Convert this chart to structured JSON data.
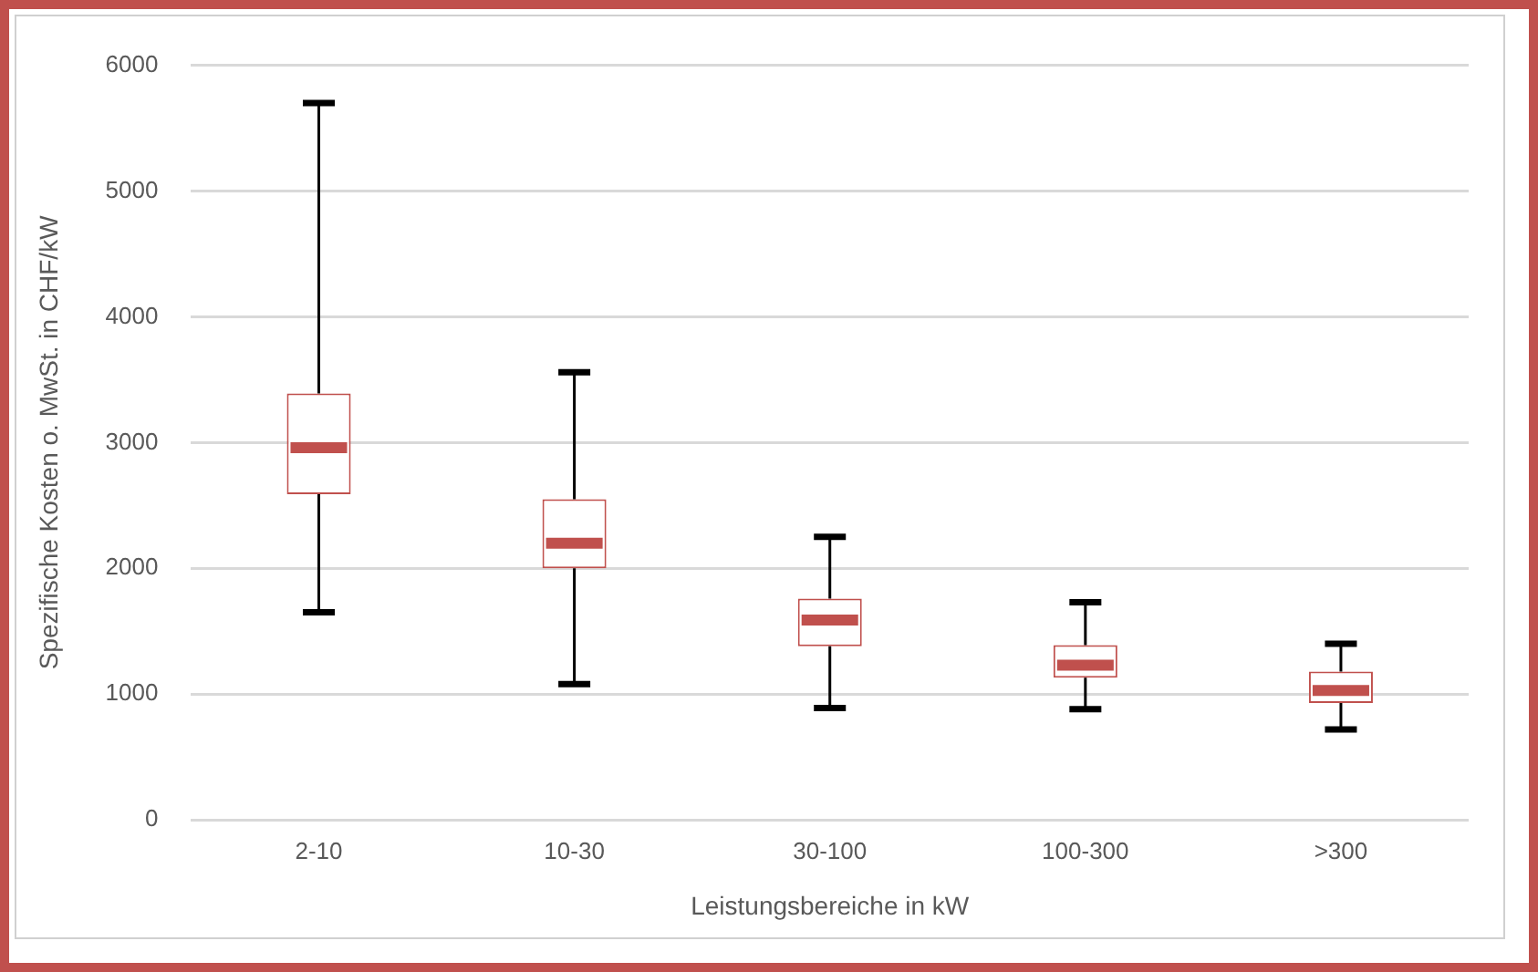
{
  "chart_data": {
    "type": "box",
    "xlabel": "Leistungsbereiche in kW",
    "ylabel": "Spezifische Kosten o. MwSt. in CHF/kW",
    "categories": [
      "2-10",
      "10-30",
      "30-100",
      "100-300",
      ">300"
    ],
    "color": "#c0504d",
    "boxes": [
      {
        "low": 1650,
        "q1": 2590,
        "median": 2960,
        "q3": 3390,
        "high": 5700
      },
      {
        "low": 1080,
        "q1": 2000,
        "median": 2200,
        "q3": 2550,
        "high": 3560
      },
      {
        "low": 890,
        "q1": 1380,
        "median": 1590,
        "q3": 1760,
        "high": 2250
      },
      {
        "low": 880,
        "q1": 1130,
        "median": 1230,
        "q3": 1390,
        "high": 1730
      },
      {
        "low": 720,
        "q1": 930,
        "median": 1030,
        "q3": 1180,
        "high": 1400
      }
    ],
    "ylim": [
      0,
      6000
    ],
    "yticks": [
      0,
      1000,
      2000,
      3000,
      4000,
      5000,
      6000
    ],
    "grid": "y",
    "legend": false
  }
}
